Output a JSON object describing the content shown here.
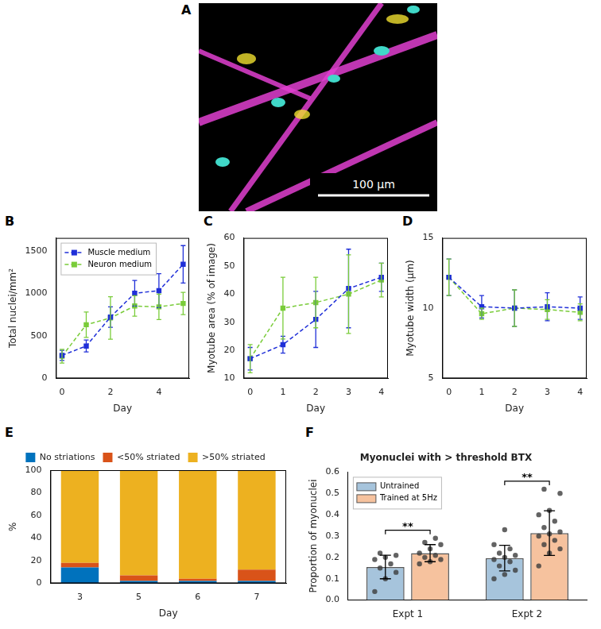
{
  "image": {
    "panel": "A",
    "scale_bar": "100 µm"
  },
  "chart_data": [
    {
      "panel": "B",
      "type": "line",
      "x_label": "Day",
      "y_label": "Total nuclei/mm²",
      "xlim": [
        -0.25,
        5.25
      ],
      "xticks": [
        0,
        2,
        4
      ],
      "ylim": [
        0,
        1650
      ],
      "yticks": [
        0,
        500,
        1000,
        1500
      ],
      "grid": false,
      "legend": "upper left",
      "marker": "square",
      "line_style": "dashed",
      "x": [
        0,
        1,
        2,
        3,
        4,
        5
      ],
      "series": [
        {
          "name": "Muscle medium",
          "color": "#1f2fd8",
          "values": [
            270,
            380,
            720,
            1000,
            1030,
            1340
          ],
          "errors": [
            60,
            70,
            120,
            150,
            200,
            220
          ]
        },
        {
          "name": "Neuron medium",
          "color": "#7acc3a",
          "values": [
            260,
            630,
            710,
            850,
            840,
            880
          ],
          "errors": [
            80,
            150,
            250,
            120,
            150,
            130
          ]
        }
      ]
    },
    {
      "panel": "C",
      "type": "line",
      "x_label": "Day",
      "y_label": "Myotube area (% of image)",
      "xlim": [
        -0.2,
        4.2
      ],
      "xticks": [
        0,
        1,
        2,
        3,
        4
      ],
      "ylim": [
        10,
        60
      ],
      "yticks": [
        10,
        20,
        30,
        40,
        50,
        60
      ],
      "grid": false,
      "marker": "square",
      "line_style": "dashed",
      "x": [
        0,
        1,
        2,
        3,
        4
      ],
      "series": [
        {
          "color": "#1f2fd8",
          "values": [
            17,
            22,
            31,
            42,
            46
          ],
          "errors": [
            4,
            3,
            10,
            14,
            5
          ]
        },
        {
          "color": "#7acc3a",
          "values": [
            17,
            35,
            37,
            40,
            45
          ],
          "errors": [
            5,
            11,
            9,
            14,
            6
          ]
        }
      ]
    },
    {
      "panel": "D",
      "type": "line",
      "x_label": "Day",
      "y_label": "Myotube width (µm)",
      "xlim": [
        -0.2,
        4.2
      ],
      "xticks": [
        0,
        1,
        2,
        3,
        4
      ],
      "ylim": [
        5,
        15
      ],
      "yticks": [
        5,
        10,
        15
      ],
      "grid": false,
      "marker": "square",
      "line_style": "dashed",
      "x": [
        0,
        1,
        2,
        3,
        4
      ],
      "series": [
        {
          "color": "#1f2fd8",
          "values": [
            12.2,
            10.1,
            10,
            10.1,
            10
          ],
          "errors": [
            1.3,
            0.8,
            1.3,
            1,
            0.8
          ]
        },
        {
          "color": "#7acc3a",
          "values": [
            12.2,
            9.6,
            10,
            9.9,
            9.7
          ],
          "errors": [
            1.3,
            0.4,
            1.3,
            0.7,
            0.6
          ]
        }
      ]
    },
    {
      "panel": "E",
      "type": "bar",
      "stacked": true,
      "x_label": "Day",
      "y_label": "%",
      "categories": [
        "3",
        "5",
        "6",
        "7"
      ],
      "ylim": [
        0,
        100
      ],
      "yticks": [
        0,
        20,
        40,
        60,
        80,
        100
      ],
      "grid": false,
      "legend": "top",
      "series": [
        {
          "name": "No striations",
          "color": "#0072bd",
          "values": [
            14,
            2,
            2,
            2
          ]
        },
        {
          "name": "<50% striated",
          "color": "#d95319",
          "values": [
            4,
            5,
            2,
            10
          ]
        },
        {
          "name": ">50% striated",
          "color": "#edb120",
          "values": [
            82,
            93,
            96,
            88
          ]
        }
      ]
    },
    {
      "panel": "F",
      "type": "bar",
      "title": "Myonuclei with > threshold BTX",
      "y_label": "Proportion of myonuclei",
      "categories": [
        "Expt 1",
        "Expt 2"
      ],
      "ylim": [
        0,
        0.6
      ],
      "yticks": [
        {
          "value": 0,
          "label": "0.0"
        },
        0.1,
        0.2,
        0.3,
        0.4,
        0.5,
        0.6
      ],
      "grid": false,
      "legend": "upper left",
      "series": [
        {
          "name": "Untrained",
          "color": "#a6c4dc",
          "values": [
            0.155,
            0.197
          ],
          "errors": [
            0.055,
            0.06
          ],
          "points": [
            [
              0.04,
              0.1,
              0.13,
              0.15,
              0.17,
              0.19,
              0.2,
              0.21,
              0.22
            ],
            [
              0.1,
              0.12,
              0.14,
              0.16,
              0.18,
              0.19,
              0.2,
              0.21,
              0.22,
              0.24,
              0.26,
              0.33
            ]
          ]
        },
        {
          "name": "Trained at 5Hz",
          "color": "#f6c29e",
          "values": [
            0.22,
            0.314
          ],
          "errors": [
            0.04,
            0.105
          ],
          "points": [
            [
              0.17,
              0.18,
              0.19,
              0.2,
              0.21,
              0.22,
              0.24,
              0.26,
              0.27,
              0.29
            ],
            [
              0.16,
              0.22,
              0.24,
              0.26,
              0.28,
              0.3,
              0.31,
              0.32,
              0.34,
              0.37,
              0.4,
              0.42,
              0.5,
              0.52
            ]
          ]
        }
      ],
      "annotations": [
        {
          "category": "Expt 1",
          "text": "**"
        },
        {
          "category": "Expt 2",
          "text": "**"
        }
      ]
    }
  ]
}
